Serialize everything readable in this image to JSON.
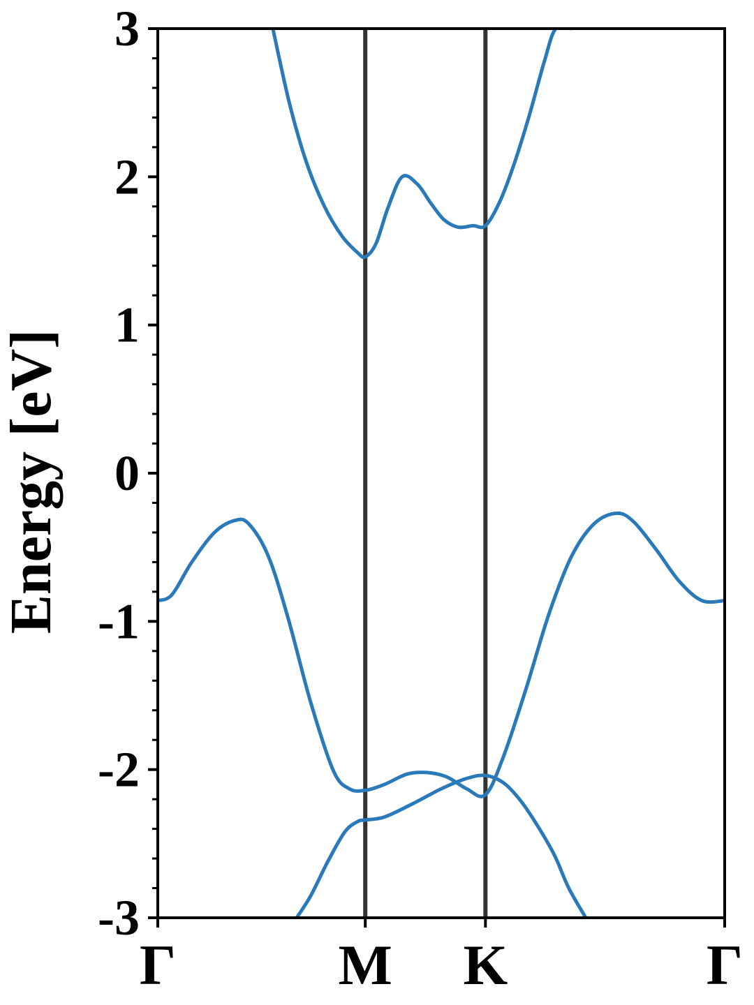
{
  "chart_data": {
    "type": "line",
    "ylabel": "Energy [eV]",
    "xlabel": "",
    "ylim": [
      -3,
      3
    ],
    "xlim": [
      0,
      1
    ],
    "yticks": [
      -3,
      -2,
      -1,
      0,
      1,
      2,
      3
    ],
    "ytick_labels": [
      "-3",
      "-2",
      "-1",
      "0",
      "1",
      "2",
      "3"
    ],
    "yminor_step": 0.2,
    "xticks": [
      {
        "label": "Γ",
        "x": 0.0
      },
      {
        "label": "M",
        "x": 0.366
      },
      {
        "label": "K",
        "x": 0.578
      },
      {
        "label": "Γ",
        "x": 1.0
      }
    ],
    "vlines": [
      0.366,
      0.578
    ],
    "grid": false,
    "colors": {
      "band": "#2a7ab9",
      "vline": "#333333",
      "frame": "#000000"
    },
    "series": [
      {
        "x": [
          0.203,
          0.232,
          0.262,
          0.294,
          0.325,
          0.352,
          0.366,
          0.385,
          0.406,
          0.431,
          0.458,
          0.482,
          0.505,
          0.53,
          0.556,
          0.578,
          0.603,
          0.628,
          0.655,
          0.682,
          0.702,
          0.73
        ],
        "y": [
          3.0,
          2.5,
          2.1,
          1.8,
          1.6,
          1.49,
          1.46,
          1.55,
          1.79,
          2.0,
          1.95,
          1.82,
          1.71,
          1.66,
          1.67,
          1.67,
          1.83,
          2.08,
          2.41,
          2.78,
          3.0,
          3.0
        ]
      },
      {
        "x": [
          0.0,
          0.025,
          0.06,
          0.1,
          0.135,
          0.16,
          0.195,
          0.23,
          0.27,
          0.31,
          0.338,
          0.366,
          0.4,
          0.44,
          0.475,
          0.51,
          0.545,
          0.578,
          0.61,
          0.65,
          0.69,
          0.73,
          0.77,
          0.81,
          0.84,
          0.88,
          0.92,
          0.96,
          1.0
        ],
        "y": [
          -0.86,
          -0.82,
          -0.6,
          -0.4,
          -0.32,
          -0.34,
          -0.56,
          -0.98,
          -1.55,
          -2.01,
          -2.13,
          -2.14,
          -2.1,
          -2.03,
          -2.02,
          -2.05,
          -2.13,
          -2.17,
          -1.91,
          -1.45,
          -0.95,
          -0.56,
          -0.34,
          -0.27,
          -0.33,
          -0.52,
          -0.73,
          -0.86,
          -0.86
        ]
      },
      {
        "x": [
          0.245,
          0.27,
          0.3,
          0.33,
          0.353,
          0.366,
          0.4,
          0.45,
          0.5,
          0.545,
          0.578,
          0.61,
          0.64,
          0.67,
          0.7,
          0.725,
          0.755
        ],
        "y": [
          -3.0,
          -2.85,
          -2.62,
          -2.42,
          -2.35,
          -2.34,
          -2.32,
          -2.23,
          -2.13,
          -2.06,
          -2.04,
          -2.09,
          -2.21,
          -2.38,
          -2.58,
          -2.8,
          -3.0
        ]
      }
    ]
  }
}
